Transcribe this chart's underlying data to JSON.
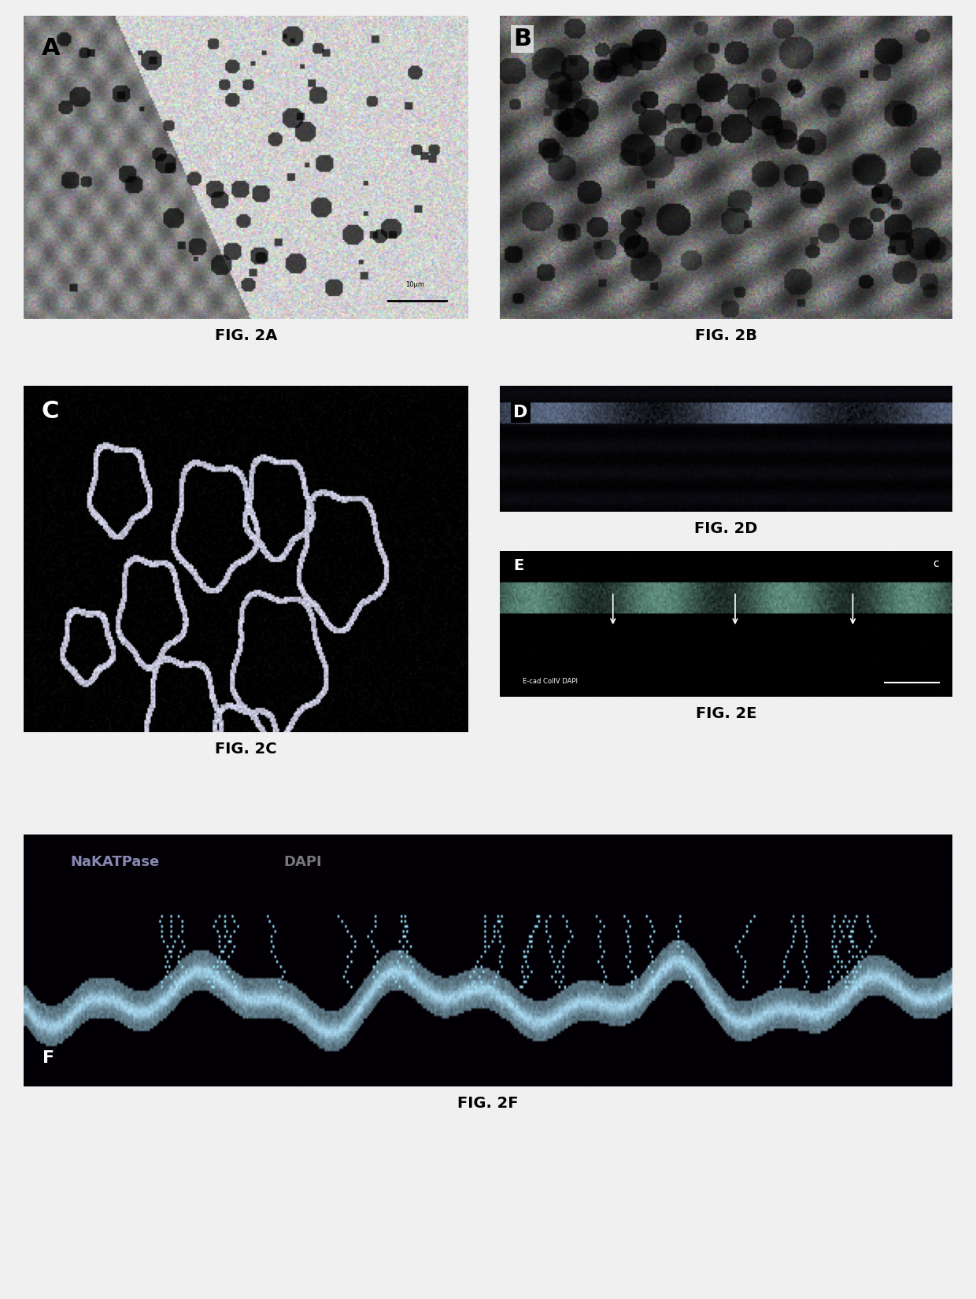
{
  "background_color": "#f0f0f0",
  "panel_bg_A": "#c8c8c8",
  "panel_bg_B": "#b8b8b8",
  "panel_bg_C": "#000000",
  "panel_bg_D": "#1a1a2e",
  "panel_bg_E": "#0a0a1a",
  "panel_bg_F": "#050510",
  "label_A": "A",
  "label_B": "B",
  "label_C": "C",
  "label_D": "D",
  "label_E": "E",
  "label_F": "F",
  "caption_A": "FIG. 2A",
  "caption_B": "FIG. 2B",
  "caption_C": "FIG. 2C",
  "caption_D": "FIG. 2D",
  "caption_E": "FIG. 2E",
  "caption_F": "FIG. 2F",
  "fig_width": 12.4,
  "fig_height": 16.5,
  "nakATPase_label": "NaKATPase",
  "dapi_label_F": "DAPI",
  "ecad_collv_dapi_label": "E-cad ColIV DAPI",
  "label_c_corner": "c"
}
